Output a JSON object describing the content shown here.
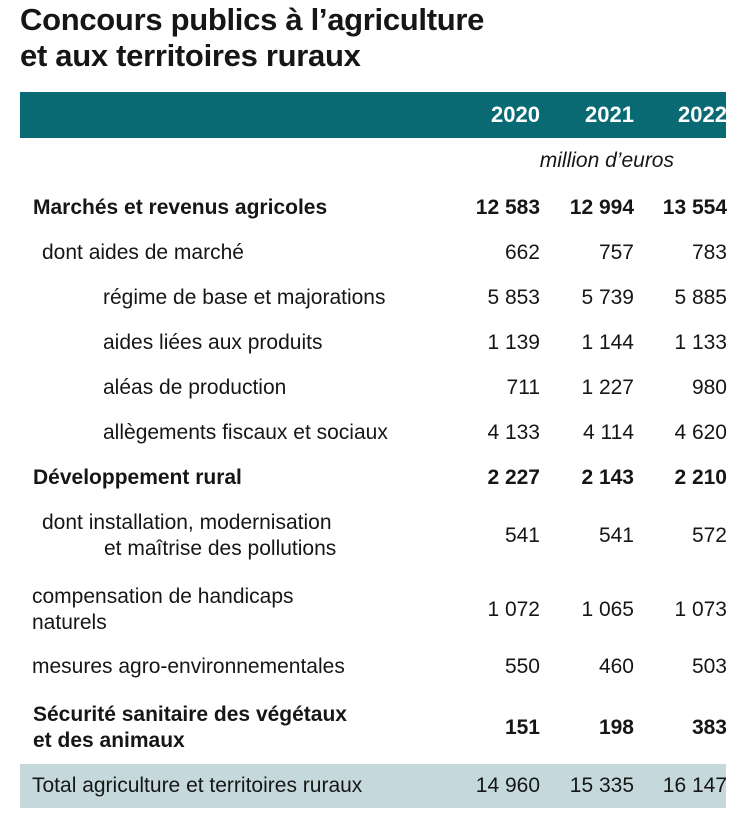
{
  "title": {
    "line1": "Concours publics à l’agriculture",
    "line2": "et aux territoires ruraux"
  },
  "table": {
    "years": [
      "2020",
      "2021",
      "2022"
    ],
    "unit": "million d’euros",
    "rows": [
      {
        "label": [
          "Marchés et revenus agricoles"
        ],
        "values": [
          "12 583",
          "12 994",
          "13 554"
        ],
        "bold": true
      },
      {
        "label": [
          "dont aides de marché"
        ],
        "values": [
          "662",
          "757",
          "783"
        ]
      },
      {
        "label": [
          "régime de base et majorations"
        ],
        "values": [
          "5 853",
          "5 739",
          "5 885"
        ]
      },
      {
        "label": [
          "aides liées aux produits"
        ],
        "values": [
          "1 139",
          "1 144",
          "1 133"
        ]
      },
      {
        "label": [
          "aléas de production"
        ],
        "values": [
          "711",
          "1 227",
          "980"
        ]
      },
      {
        "label": [
          "allègements fiscaux et sociaux"
        ],
        "values": [
          "4 133",
          "4 114",
          "4 620"
        ]
      },
      {
        "label": [
          "Développement rural"
        ],
        "values": [
          "2 227",
          "2 143",
          "2 210"
        ],
        "bold": true
      },
      {
        "label": [
          "dont installation, modernisation",
          "et maîtrise des pollutions"
        ],
        "values": [
          "541",
          "541",
          "572"
        ]
      },
      {
        "label": [
          "compensation de handicaps",
          "naturels"
        ],
        "values": [
          "1 072",
          "1 065",
          "1 073"
        ]
      },
      {
        "label": [
          "mesures agro-environnementales"
        ],
        "values": [
          "550",
          "460",
          "503"
        ]
      },
      {
        "label": [
          "Sécurité sanitaire des végétaux",
          "et des animaux"
        ],
        "values": [
          "151",
          "198",
          "383"
        ],
        "bold": true
      },
      {
        "label": [
          "Total agriculture et territoires ruraux"
        ],
        "values": [
          "14 960",
          "15 335",
          "16 147"
        ],
        "total": true
      }
    ]
  }
}
